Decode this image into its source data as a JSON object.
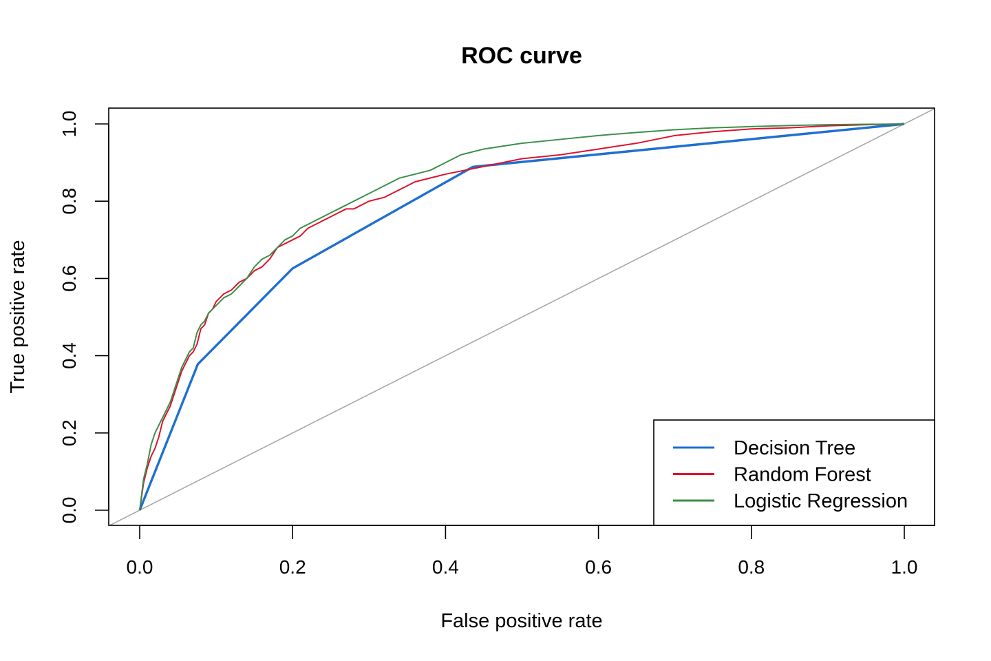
{
  "chart_data": {
    "type": "line",
    "title": "ROC curve",
    "xlabel": "False positive rate",
    "ylabel": "True positive rate",
    "xlim": [
      0,
      1
    ],
    "ylim": [
      0,
      1
    ],
    "xticks": [
      "0.0",
      "0.2",
      "0.4",
      "0.6",
      "0.8",
      "1.0"
    ],
    "yticks": [
      "0.0",
      "0.2",
      "0.4",
      "0.6",
      "0.8",
      "1.0"
    ],
    "legend_position": "bottom-right",
    "grid": false,
    "reference_line": {
      "x": [
        0,
        1
      ],
      "y": [
        0,
        1
      ],
      "color": "#a6a6a6"
    },
    "series": [
      {
        "name": "Decision Tree",
        "color": "#1f6fd1",
        "x": [
          0.0,
          0.076,
          0.2,
          0.436,
          1.0
        ],
        "y": [
          0.0,
          0.378,
          0.626,
          0.889,
          1.0
        ]
      },
      {
        "name": "Random Forest",
        "color": "#e0112e",
        "x": [
          0.0,
          0.005,
          0.01,
          0.015,
          0.02,
          0.025,
          0.03,
          0.035,
          0.04,
          0.045,
          0.05,
          0.055,
          0.06,
          0.065,
          0.07,
          0.075,
          0.08,
          0.085,
          0.09,
          0.095,
          0.1,
          0.105,
          0.11,
          0.12,
          0.13,
          0.14,
          0.15,
          0.16,
          0.17,
          0.18,
          0.19,
          0.2,
          0.21,
          0.22,
          0.23,
          0.24,
          0.25,
          0.26,
          0.27,
          0.28,
          0.3,
          0.32,
          0.34,
          0.36,
          0.4,
          0.45,
          0.5,
          0.55,
          0.6,
          0.65,
          0.7,
          0.75,
          0.8,
          0.85,
          0.9,
          0.95,
          1.0
        ],
        "y": [
          0.0,
          0.07,
          0.11,
          0.14,
          0.16,
          0.19,
          0.23,
          0.25,
          0.27,
          0.3,
          0.33,
          0.36,
          0.38,
          0.4,
          0.41,
          0.43,
          0.47,
          0.48,
          0.51,
          0.52,
          0.54,
          0.55,
          0.56,
          0.57,
          0.59,
          0.6,
          0.62,
          0.63,
          0.65,
          0.68,
          0.69,
          0.7,
          0.71,
          0.73,
          0.74,
          0.75,
          0.76,
          0.77,
          0.78,
          0.78,
          0.8,
          0.81,
          0.83,
          0.85,
          0.87,
          0.89,
          0.91,
          0.92,
          0.935,
          0.95,
          0.97,
          0.98,
          0.987,
          0.99,
          0.995,
          0.998,
          1.0
        ]
      },
      {
        "name": "Logistic Regression",
        "color": "#3c8f4a",
        "x": [
          0.0,
          0.005,
          0.01,
          0.015,
          0.02,
          0.025,
          0.03,
          0.035,
          0.04,
          0.045,
          0.05,
          0.055,
          0.06,
          0.065,
          0.07,
          0.075,
          0.08,
          0.085,
          0.09,
          0.095,
          0.1,
          0.105,
          0.11,
          0.12,
          0.13,
          0.14,
          0.15,
          0.16,
          0.17,
          0.18,
          0.19,
          0.2,
          0.21,
          0.22,
          0.23,
          0.24,
          0.25,
          0.26,
          0.27,
          0.28,
          0.3,
          0.32,
          0.34,
          0.36,
          0.38,
          0.4,
          0.42,
          0.45,
          0.5,
          0.55,
          0.6,
          0.65,
          0.7,
          0.75,
          0.8,
          0.85,
          0.9,
          0.95,
          1.0
        ],
        "y": [
          0.0,
          0.08,
          0.12,
          0.17,
          0.2,
          0.22,
          0.24,
          0.26,
          0.28,
          0.31,
          0.34,
          0.37,
          0.39,
          0.41,
          0.42,
          0.46,
          0.48,
          0.49,
          0.51,
          0.52,
          0.53,
          0.54,
          0.55,
          0.56,
          0.58,
          0.6,
          0.63,
          0.65,
          0.66,
          0.68,
          0.7,
          0.71,
          0.73,
          0.74,
          0.75,
          0.76,
          0.77,
          0.78,
          0.79,
          0.8,
          0.82,
          0.84,
          0.86,
          0.87,
          0.88,
          0.9,
          0.92,
          0.935,
          0.95,
          0.96,
          0.97,
          0.978,
          0.985,
          0.99,
          0.993,
          0.996,
          0.998,
          0.999,
          1.0
        ]
      }
    ]
  }
}
